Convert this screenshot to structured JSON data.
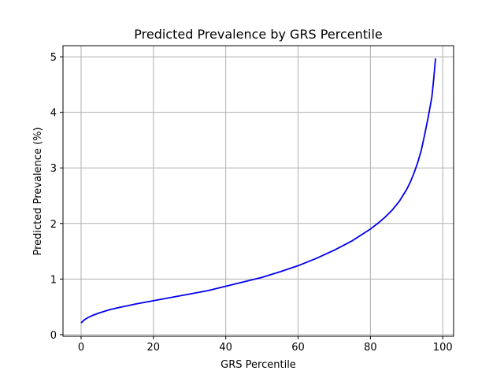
{
  "chart_data": {
    "type": "line",
    "title": "Predicted Prevalence by GRS Percentile",
    "xlabel": "GRS Percentile",
    "ylabel": "Predicted Prevalence (%)",
    "xlim": [
      -5,
      103
    ],
    "ylim": [
      -0.03,
      5.2
    ],
    "xticks": [
      0,
      20,
      40,
      60,
      80,
      100
    ],
    "yticks": [
      0,
      1,
      2,
      3,
      4,
      5
    ],
    "xtick_labels": [
      "0",
      "20",
      "40",
      "60",
      "80",
      "100"
    ],
    "ytick_labels": [
      "0",
      "1",
      "2",
      "3",
      "4",
      "5"
    ],
    "grid": true,
    "colors": {
      "line": "#0000ee",
      "grid": "#b0b0b0",
      "axes": "#000000"
    },
    "series": [
      {
        "x": [
          0,
          1,
          2,
          3,
          5,
          8,
          10,
          15,
          20,
          25,
          30,
          35,
          40,
          45,
          50,
          55,
          60,
          65,
          70,
          75,
          80,
          82,
          84,
          86,
          88,
          90,
          91,
          92,
          93,
          94,
          95,
          96,
          97,
          97.5,
          98
        ],
        "y": [
          0.21,
          0.27,
          0.31,
          0.34,
          0.39,
          0.45,
          0.48,
          0.55,
          0.61,
          0.67,
          0.73,
          0.79,
          0.87,
          0.95,
          1.03,
          1.13,
          1.24,
          1.37,
          1.52,
          1.69,
          1.9,
          2.0,
          2.11,
          2.24,
          2.4,
          2.61,
          2.74,
          2.9,
          3.08,
          3.3,
          3.6,
          3.92,
          4.28,
          4.6,
          4.97
        ]
      }
    ]
  }
}
